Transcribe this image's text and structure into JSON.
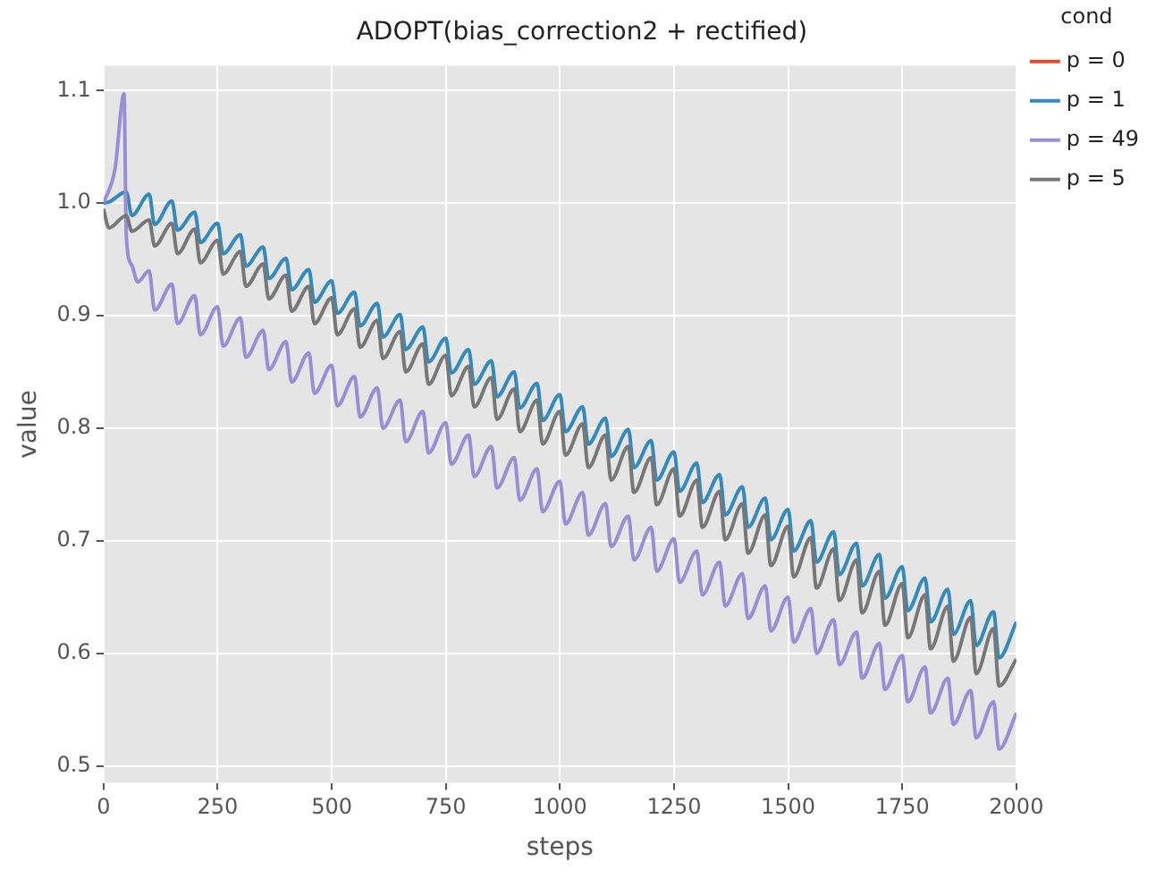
{
  "chart_data": {
    "type": "line",
    "title": "ADOPT(bias_correction2 + rectified)",
    "xlabel": "steps",
    "ylabel": "value",
    "legend_title": "cond",
    "legend": "top right",
    "grid": true,
    "marker": "none",
    "line_style": "solid",
    "xlim": [
      0,
      2000
    ],
    "xticks": [
      0,
      250,
      500,
      750,
      1000,
      1250,
      1500,
      1750,
      2000
    ],
    "ylim": [
      0.485,
      1.122
    ],
    "yticks": [
      {
        "value": 0.5,
        "label": "0.5"
      },
      {
        "value": 0.6,
        "label": "0.6"
      },
      {
        "value": 0.7,
        "label": "0.7"
      },
      {
        "value": 0.8,
        "label": "0.8"
      },
      {
        "value": 0.9,
        "label": "0.9"
      },
      {
        "value": 1.0,
        "label": "1.0"
      },
      {
        "value": 1.1,
        "label": "1.1"
      }
    ],
    "x": [
      0,
      12,
      50,
      62,
      100,
      112,
      150,
      162,
      200,
      212,
      250,
      262,
      300,
      312,
      350,
      362,
      400,
      412,
      450,
      462,
      500,
      512,
      550,
      562,
      600,
      612,
      650,
      662,
      700,
      712,
      750,
      762,
      800,
      812,
      850,
      862,
      900,
      912,
      950,
      962,
      1000,
      1012,
      1050,
      1062,
      1100,
      1112,
      1150,
      1162,
      1200,
      1212,
      1250,
      1262,
      1300,
      1312,
      1350,
      1362,
      1400,
      1412,
      1450,
      1462,
      1500,
      1512,
      1550,
      1562,
      1600,
      1612,
      1650,
      1662,
      1700,
      1712,
      1750,
      1762,
      1800,
      1812,
      1850,
      1862,
      1900,
      1912,
      1950,
      1962,
      2000
    ],
    "series": [
      {
        "name": "p = 0",
        "color": "#e24a33",
        "values": [
          null,
          null,
          null,
          null,
          null,
          null,
          null,
          null,
          null,
          null,
          null,
          null,
          null,
          null,
          null,
          null,
          null,
          null,
          null,
          null,
          null,
          null,
          null,
          null,
          null,
          null,
          null,
          null,
          null,
          null,
          null,
          null,
          null,
          null,
          null,
          null,
          null,
          null,
          null,
          null,
          null,
          null,
          null,
          null,
          null,
          null,
          null,
          null,
          null,
          null,
          null,
          null,
          null,
          null,
          null,
          null,
          null,
          null,
          null,
          null,
          null,
          null,
          null,
          null,
          null,
          null,
          null,
          null,
          null,
          null,
          null,
          null,
          null,
          null,
          null,
          null,
          null,
          null,
          null,
          null,
          null
        ]
      },
      {
        "name": "p = 1",
        "color": "#348abd",
        "values": [
          1.0,
          1.001,
          1.01,
          0.989,
          1.008,
          0.981,
          1.002,
          0.976,
          0.992,
          0.965,
          0.982,
          0.955,
          0.972,
          0.944,
          0.961,
          0.933,
          0.951,
          0.923,
          0.941,
          0.912,
          0.931,
          0.902,
          0.921,
          0.891,
          0.911,
          0.881,
          0.901,
          0.87,
          0.89,
          0.859,
          0.88,
          0.849,
          0.87,
          0.839,
          0.86,
          0.828,
          0.85,
          0.818,
          0.84,
          0.807,
          0.83,
          0.797,
          0.819,
          0.786,
          0.809,
          0.775,
          0.799,
          0.765,
          0.789,
          0.754,
          0.779,
          0.744,
          0.769,
          0.734,
          0.759,
          0.723,
          0.748,
          0.712,
          0.738,
          0.701,
          0.728,
          0.691,
          0.718,
          0.681,
          0.708,
          0.67,
          0.698,
          0.66,
          0.688,
          0.649,
          0.677,
          0.638,
          0.667,
          0.628,
          0.657,
          0.617,
          0.647,
          0.607,
          0.637,
          0.596,
          0.628
        ]
      },
      {
        "name": "p = 49",
        "color": "#988ed5",
        "x": [
          0,
          25,
          45,
          50,
          62,
          75,
          100,
          112,
          150,
          162,
          200,
          212,
          250,
          262,
          300,
          312,
          350,
          362,
          400,
          412,
          450,
          462,
          500,
          512,
          550,
          562,
          600,
          612,
          650,
          662,
          700,
          712,
          750,
          762,
          800,
          812,
          850,
          862,
          900,
          912,
          950,
          962,
          1000,
          1012,
          1050,
          1062,
          1100,
          1112,
          1150,
          1162,
          1200,
          1212,
          1250,
          1262,
          1300,
          1312,
          1350,
          1362,
          1400,
          1412,
          1450,
          1462,
          1500,
          1512,
          1550,
          1562,
          1600,
          1612,
          1650,
          1662,
          1700,
          1712,
          1750,
          1762,
          1800,
          1812,
          1850,
          1862,
          1900,
          1912,
          1950,
          1962,
          2000
        ],
        "values": [
          1.0,
          1.03,
          1.097,
          0.97,
          0.945,
          0.93,
          0.94,
          0.905,
          0.928,
          0.893,
          0.918,
          0.883,
          0.908,
          0.873,
          0.898,
          0.863,
          0.887,
          0.852,
          0.877,
          0.841,
          0.867,
          0.831,
          0.856,
          0.82,
          0.846,
          0.81,
          0.836,
          0.8,
          0.825,
          0.788,
          0.815,
          0.778,
          0.805,
          0.768,
          0.794,
          0.757,
          0.784,
          0.747,
          0.774,
          0.736,
          0.764,
          0.726,
          0.753,
          0.715,
          0.743,
          0.705,
          0.733,
          0.695,
          0.722,
          0.683,
          0.712,
          0.673,
          0.702,
          0.663,
          0.691,
          0.652,
          0.681,
          0.642,
          0.671,
          0.631,
          0.66,
          0.62,
          0.65,
          0.61,
          0.64,
          0.6,
          0.63,
          0.59,
          0.619,
          0.578,
          0.609,
          0.568,
          0.598,
          0.557,
          0.588,
          0.547,
          0.578,
          0.537,
          0.567,
          0.525,
          0.557,
          0.515,
          0.547
        ]
      },
      {
        "name": "p = 5",
        "color": "#777777",
        "values": [
          0.995,
          0.978,
          0.989,
          0.975,
          0.985,
          0.962,
          0.982,
          0.955,
          0.977,
          0.947,
          0.967,
          0.937,
          0.957,
          0.926,
          0.946,
          0.915,
          0.936,
          0.904,
          0.926,
          0.893,
          0.916,
          0.883,
          0.906,
          0.872,
          0.896,
          0.862,
          0.886,
          0.85,
          0.875,
          0.839,
          0.865,
          0.829,
          0.855,
          0.819,
          0.845,
          0.808,
          0.835,
          0.797,
          0.825,
          0.786,
          0.815,
          0.776,
          0.804,
          0.765,
          0.794,
          0.754,
          0.784,
          0.743,
          0.774,
          0.732,
          0.764,
          0.722,
          0.754,
          0.712,
          0.744,
          0.701,
          0.733,
          0.689,
          0.723,
          0.678,
          0.713,
          0.668,
          0.703,
          0.658,
          0.693,
          0.647,
          0.683,
          0.636,
          0.673,
          0.625,
          0.662,
          0.614,
          0.652,
          0.604,
          0.642,
          0.593,
          0.632,
          0.582,
          0.622,
          0.571,
          0.595
        ]
      }
    ]
  }
}
